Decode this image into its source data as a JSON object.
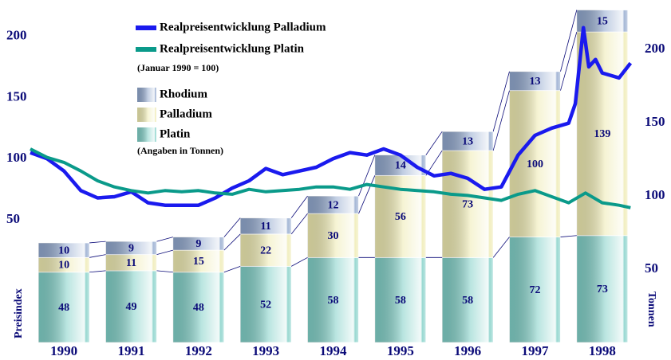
{
  "chart_data": [
    {
      "type": "bar",
      "stacked": true,
      "categories": [
        "1990",
        "1991",
        "1992",
        "1993",
        "1994",
        "1995",
        "1996",
        "1997",
        "1998"
      ],
      "series": [
        {
          "name": "Platin",
          "color": "#7fcfc6",
          "axis": "y2",
          "values": [
            48,
            49,
            48,
            52,
            58,
            58,
            58,
            72,
            73
          ]
        },
        {
          "name": "Palladium",
          "color": "#eeeab0",
          "axis": "y2",
          "values": [
            10,
            11,
            15,
            22,
            30,
            56,
            73,
            100,
            139
          ]
        },
        {
          "name": "Rhodium",
          "color": "#8fa6cc",
          "axis": "y2",
          "values": [
            10,
            9,
            9,
            11,
            12,
            14,
            13,
            13,
            15
          ]
        }
      ],
      "y2lim": [
        0,
        230
      ],
      "y2ticks": [
        50,
        100,
        150,
        200
      ],
      "y2_label": "Tonnen",
      "note": "(Angaben in Tonnen)"
    },
    {
      "type": "line",
      "subtitle": "(Januar 1990 = 100)",
      "y_label": "Preisindex",
      "ylim": [
        -50,
        225
      ],
      "yticks": [
        50,
        100,
        150,
        200
      ],
      "xlim": [
        1990,
        1999
      ],
      "series": [
        {
          "name": "Realpreisentwicklung Palladium",
          "color": "#1a1aee",
          "x": [
            1990,
            1990.25,
            1990.5,
            1990.75,
            1991,
            1991.25,
            1991.5,
            1991.75,
            1992,
            1992.25,
            1992.5,
            1992.75,
            1993,
            1993.25,
            1993.5,
            1993.75,
            1994,
            1994.25,
            1994.5,
            1994.75,
            1995,
            1995.25,
            1995.5,
            1995.75,
            1996,
            1996.25,
            1996.5,
            1996.75,
            1997,
            1997.25,
            1997.5,
            1997.75,
            1998,
            1998.1,
            1998.22,
            1998.3,
            1998.4,
            1998.5,
            1998.75,
            1998.92
          ],
          "values": [
            105,
            100,
            90,
            74,
            68,
            69,
            73,
            64,
            62,
            62,
            62,
            68,
            76,
            82,
            92,
            87,
            90,
            93,
            100,
            105,
            103,
            108,
            103,
            93,
            86,
            88,
            84,
            75,
            77,
            103,
            119,
            125,
            129,
            145,
            207,
            175,
            181,
            170,
            166,
            178
          ]
        },
        {
          "name": "Realpreisentwicklung Platin",
          "color": "#0a9a8a",
          "x": [
            1990,
            1990.25,
            1990.5,
            1990.75,
            1991,
            1991.25,
            1991.5,
            1991.75,
            1992,
            1992.25,
            1992.5,
            1992.75,
            1993,
            1993.25,
            1993.5,
            1993.75,
            1994,
            1994.25,
            1994.5,
            1994.75,
            1995,
            1995.25,
            1995.5,
            1995.75,
            1996,
            1996.25,
            1996.5,
            1996.75,
            1997,
            1997.25,
            1997.5,
            1997.75,
            1998,
            1998.25,
            1998.5,
            1998.75,
            1998.92
          ],
          "values": [
            108,
            101,
            97,
            90,
            82,
            77,
            74,
            72,
            74,
            73,
            74,
            72,
            71,
            75,
            73,
            74,
            75,
            77,
            77,
            75,
            79,
            77,
            75,
            74,
            73,
            71,
            70,
            68,
            66,
            71,
            74,
            69,
            64,
            72,
            64,
            62,
            60
          ]
        }
      ]
    }
  ]
}
